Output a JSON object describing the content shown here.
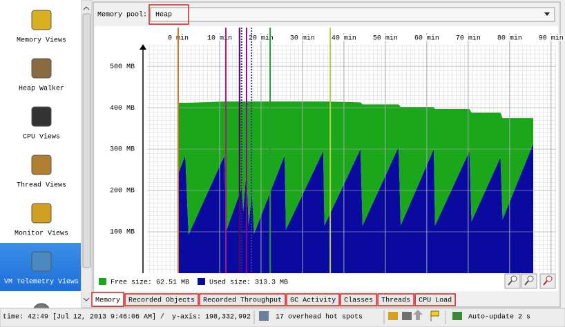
{
  "sidebar": {
    "items": [
      "Memory Views",
      "Heap Walker",
      "CPU Views",
      "Thread Views",
      "Monitor Views",
      "VM Telemetry Views"
    ],
    "selected": 5
  },
  "memory_pool": {
    "label": "Memory pool:",
    "value": "Heap"
  },
  "chart_data": {
    "type": "stacked_area",
    "x": [
      0.0,
      1.7,
      2.5,
      11.2,
      11.5,
      15.3,
      15.7,
      16.5,
      17.0,
      17.8,
      18.3,
      25.7,
      26.0,
      35.0,
      35.3,
      44.0,
      44.5,
      53.2,
      53.7,
      61.7,
      62.0,
      70.3,
      70.8,
      77.8,
      78.3,
      85.7
    ],
    "series": [
      {
        "name": "Free size: 62.51 MB",
        "color": "#1aa81a",
        "values": [
          172,
          127,
          319,
          130,
          315,
          210,
          265,
          165,
          300,
          220,
          320,
          130,
          310,
          120,
          300,
          113,
          293,
          103,
          287,
          102,
          282,
          102,
          263,
          108,
          245,
          62
        ]
      },
      {
        "name": "Used size: 313.3 MB",
        "color": "#0a0aa0",
        "values": [
          240,
          285,
          93,
          285,
          100,
          205,
          150,
          250,
          115,
          195,
          95,
          285,
          105,
          295,
          115,
          300,
          115,
          305,
          115,
          300,
          115,
          295,
          125,
          280,
          130,
          313
        ]
      }
    ],
    "xlim": [
      -7.5,
      91.2
    ],
    "xticks": [
      {
        "value": 0,
        "label": "0 min"
      },
      {
        "value": 10,
        "label": "10 min"
      },
      {
        "value": 20,
        "label": "20 min"
      },
      {
        "value": 30,
        "label": "30 min"
      },
      {
        "value": 40,
        "label": "40 min"
      },
      {
        "value": 50,
        "label": "50 min"
      },
      {
        "value": 60,
        "label": "60 min"
      },
      {
        "value": 70,
        "label": "70 min"
      },
      {
        "value": 80,
        "label": "80 min"
      },
      {
        "value": 90,
        "label": "90 min"
      }
    ],
    "ylim": [
      0,
      552
    ],
    "yticks": [
      {
        "value": 100,
        "label": "100 MB"
      },
      {
        "value": 200,
        "label": "200 MB"
      },
      {
        "value": 300,
        "label": "300 MB"
      },
      {
        "value": 400,
        "label": "400 MB"
      },
      {
        "value": 500,
        "label": "500 MB"
      }
    ],
    "grid": true,
    "event_lines": {
      "x": [
        0.0,
        11.5,
        14.8,
        15.3,
        16.5,
        17.7,
        22.2,
        36.7
      ],
      "colors": [
        "#e07020",
        "#a0207a",
        "#600060",
        "#2a2a80",
        "#8a0a8a",
        "#3a3a90",
        "#2a9a2a",
        "#b8d040"
      ],
      "dotted": [
        false,
        false,
        false,
        true,
        false,
        true,
        false,
        false
      ]
    }
  },
  "tabs": {
    "items": [
      "Memory",
      "Recorded Objects",
      "Recorded Throughput",
      "GC Activity",
      "Classes",
      "Threads",
      "CPU Load"
    ],
    "selected": 0
  },
  "status": {
    "time": "time: 42:49 [Jul 12, 2013 9:46:06 AM] /",
    "y_axis": "y-axis: 198,332,992",
    "hot_spots": "17 overhead hot spots",
    "auto_update": "Auto-update 2 s"
  }
}
